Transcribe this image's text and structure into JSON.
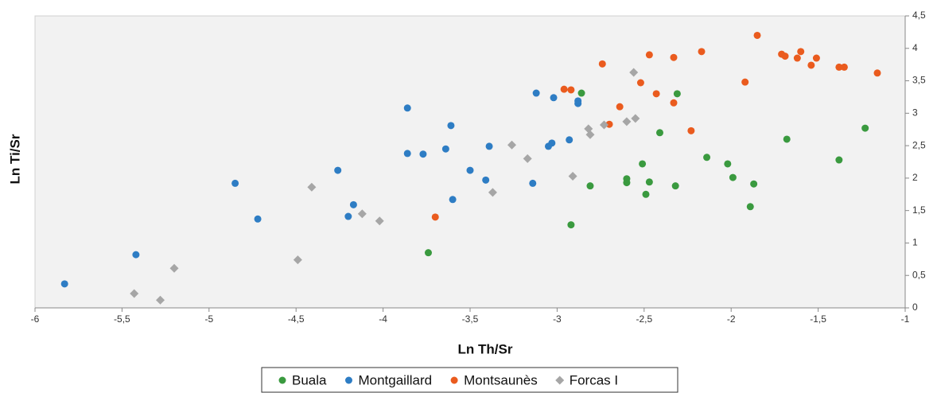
{
  "chart_data": {
    "type": "scatter",
    "x_label": "Ln Th/Sr",
    "y_label": "Ln Ti/Sr",
    "xlim": [
      -6,
      -1
    ],
    "ylim": [
      0,
      4.5
    ],
    "xticks": [
      -6,
      {
        "value": -5.5,
        "label": "-5,5"
      },
      -5,
      {
        "value": -4.5,
        "label": "-4,5"
      },
      -4,
      {
        "value": -3.5,
        "label": "-3,5"
      },
      -3,
      {
        "value": -2.5,
        "label": "-2,5"
      },
      -2,
      {
        "value": -1.5,
        "label": "-1,5"
      },
      -1
    ],
    "yticks": [
      0,
      {
        "value": 0.5,
        "label": "0,5"
      },
      1,
      {
        "value": 1.5,
        "label": "1,5"
      },
      2,
      {
        "value": 2.5,
        "label": "2,5"
      },
      3,
      {
        "value": 3.5,
        "label": "3,5"
      },
      4,
      {
        "value": 4.5,
        "label": "4,5"
      }
    ],
    "series": [
      {
        "name": "Buala",
        "color": "#3a9a3f",
        "marker": "circle",
        "x": [
          -3.74,
          -2.92,
          -2.86,
          -2.31,
          -2.81,
          -2.6,
          -2.6,
          -2.51,
          -2.49,
          -2.47,
          -2.41,
          -2.32,
          -2.14,
          -2.02,
          -1.99,
          -1.89,
          -1.87,
          -1.68,
          -1.38,
          -1.23
        ],
        "values": [
          0.85,
          1.28,
          3.31,
          3.3,
          1.88,
          1.93,
          1.99,
          2.22,
          1.75,
          1.94,
          2.7,
          1.88,
          2.32,
          2.22,
          2.01,
          1.56,
          1.91,
          2.6,
          2.28,
          2.77
        ]
      },
      {
        "name": "Montgaillard",
        "color": "#2e7dc4",
        "marker": "circle",
        "x": [
          -5.83,
          -5.42,
          -4.85,
          -4.72,
          -4.26,
          -4.2,
          -4.17,
          -3.86,
          -3.86,
          -3.77,
          -3.6,
          -3.64,
          -3.61,
          -3.5,
          -3.41,
          -3.39,
          -3.14,
          -3.12,
          -3.05,
          -3.03,
          -3.02,
          -2.93,
          -2.88,
          -2.88
        ],
        "values": [
          0.37,
          0.82,
          1.92,
          1.37,
          2.12,
          1.41,
          1.59,
          3.08,
          2.38,
          2.37,
          1.67,
          2.45,
          2.81,
          2.12,
          1.97,
          2.49,
          1.92,
          3.31,
          2.49,
          2.54,
          3.24,
          2.59,
          3.19,
          3.15
        ]
      },
      {
        "name": "Montsaunès",
        "color": "#ea5b1e",
        "marker": "circle",
        "x": [
          -3.7,
          -2.96,
          -2.92,
          -2.74,
          -2.7,
          -2.64,
          -2.52,
          -2.47,
          -2.43,
          -2.33,
          -2.33,
          -2.23,
          -2.17,
          -1.92,
          -1.85,
          -1.71,
          -1.69,
          -1.62,
          -1.6,
          -1.54,
          -1.51,
          -1.38,
          -1.35,
          -1.16
        ],
        "values": [
          1.4,
          3.37,
          3.36,
          3.76,
          2.83,
          3.1,
          3.47,
          3.9,
          3.3,
          3.86,
          3.16,
          2.73,
          3.95,
          3.48,
          4.2,
          3.91,
          3.88,
          3.85,
          3.95,
          3.74,
          3.85,
          3.71,
          3.71,
          3.62
        ]
      },
      {
        "name": "Forcas I",
        "color": "#a6a6a6",
        "marker": "diamond",
        "x": [
          -5.43,
          -5.28,
          -5.2,
          -4.49,
          -4.41,
          -4.12,
          -4.02,
          -3.37,
          -3.26,
          -3.17,
          -2.91,
          -2.82,
          -2.81,
          -2.73,
          -2.6,
          -2.56,
          -2.55
        ],
        "values": [
          0.22,
          0.12,
          0.61,
          0.74,
          1.86,
          1.45,
          1.34,
          1.78,
          2.51,
          2.3,
          2.03,
          2.76,
          2.67,
          2.82,
          2.87,
          3.63,
          2.92
        ]
      }
    ]
  }
}
